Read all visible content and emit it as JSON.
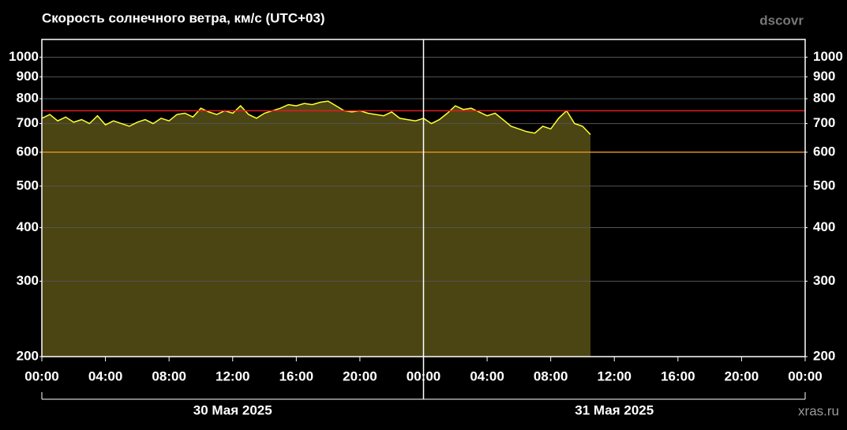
{
  "chart_data": {
    "type": "area",
    "title": "Скорость солнечного ветра, км/с (UTC+03)",
    "source": "dscovr",
    "credit": "xras.ru",
    "x": [
      0,
      0.5,
      1,
      1.5,
      2,
      2.5,
      3,
      3.5,
      4,
      4.5,
      5,
      5.5,
      6,
      6.5,
      7,
      7.5,
      8,
      8.5,
      9,
      9.5,
      10,
      10.5,
      11,
      11.5,
      12,
      12.5,
      13,
      13.5,
      14,
      14.5,
      15,
      15.5,
      16,
      16.5,
      17,
      17.5,
      18,
      18.5,
      19,
      19.5,
      20,
      20.5,
      21,
      21.5,
      22,
      22.5,
      23,
      23.5,
      24,
      24.5,
      25,
      25.5,
      26,
      26.5,
      27,
      27.5,
      28,
      28.5,
      29,
      29.5,
      30,
      30.5,
      31,
      31.5,
      32,
      32.5,
      33,
      33.5,
      34,
      34.5
    ],
    "values": [
      720,
      735,
      710,
      725,
      705,
      715,
      700,
      730,
      695,
      710,
      700,
      690,
      705,
      715,
      700,
      720,
      710,
      735,
      740,
      725,
      760,
      745,
      735,
      750,
      740,
      770,
      735,
      720,
      740,
      750,
      760,
      775,
      770,
      780,
      775,
      785,
      790,
      770,
      750,
      745,
      750,
      740,
      735,
      730,
      745,
      720,
      715,
      710,
      720,
      700,
      715,
      740,
      770,
      755,
      760,
      745,
      730,
      740,
      715,
      690,
      680,
      670,
      665,
      690,
      680,
      720,
      750,
      700,
      690,
      660
    ],
    "line_color": "#ffff33",
    "fill_color": "#4a4512",
    "thresholds": [
      {
        "value": 750,
        "color": "#e01e1e"
      },
      {
        "value": 600,
        "color": "#e08a1e"
      }
    ],
    "log_scale": true,
    "grid": true,
    "ylim": [
      200,
      1100
    ],
    "yticks": [
      200,
      300,
      400,
      500,
      600,
      700,
      800,
      900,
      1000
    ],
    "xlim": [
      0,
      48
    ],
    "xticks": [
      {
        "value": 0,
        "label": "00:00"
      },
      {
        "value": 4,
        "label": "04:00"
      },
      {
        "value": 8,
        "label": "08:00"
      },
      {
        "value": 12,
        "label": "12:00"
      },
      {
        "value": 16,
        "label": "16:00"
      },
      {
        "value": 20,
        "label": "20:00"
      },
      {
        "value": 24,
        "label": "00:00"
      },
      {
        "value": 28,
        "label": "04:00"
      },
      {
        "value": 32,
        "label": "08:00"
      },
      {
        "value": 36,
        "label": "12:00"
      },
      {
        "value": 40,
        "label": "16:00"
      },
      {
        "value": 44,
        "label": "20:00"
      },
      {
        "value": 48,
        "label": "00:00"
      }
    ],
    "date_labels": [
      {
        "value": 12,
        "label": "30 Мая 2025"
      },
      {
        "value": 36,
        "label": "31 Мая 2025"
      }
    ]
  }
}
